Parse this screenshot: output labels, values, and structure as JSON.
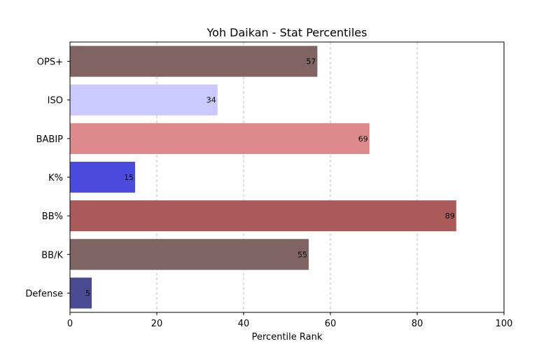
{
  "chart_data": {
    "type": "bar",
    "orientation": "horizontal",
    "title": "Yoh Daikan - Stat Percentiles",
    "xlabel": "Percentile Rank",
    "ylabel": "",
    "xlim": [
      0,
      100
    ],
    "x_ticks": [
      "0",
      "20",
      "40",
      "60",
      "80",
      "100"
    ],
    "grid": "x, dashed",
    "categories": [
      "OPS+",
      "ISO",
      "BABIP",
      "K%",
      "BB%",
      "BB/K",
      "Defense"
    ],
    "values": [
      57,
      34,
      69,
      15,
      89,
      55,
      5
    ],
    "value_labels": [
      "57",
      "34",
      "69",
      "15",
      "89",
      "55",
      "5"
    ],
    "colors": [
      "#806464",
      "#cbc9ff",
      "#de8a8a",
      "#4b4bdf",
      "#ab5a5a",
      "#806464",
      "#4a4a93"
    ]
  }
}
